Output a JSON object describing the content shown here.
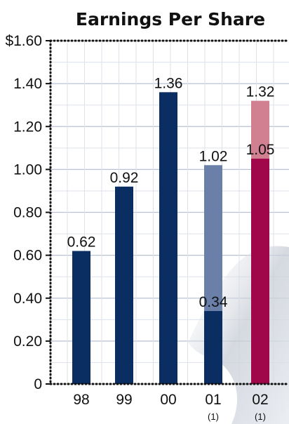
{
  "chart_data": {
    "type": "bar",
    "title": "Earnings Per Share",
    "categories": [
      "98",
      "99",
      "00",
      "01",
      "02"
    ],
    "category_notes": [
      "",
      "",
      "",
      "(1)",
      "(1)"
    ],
    "y_tick_labels": [
      "0",
      "0.20",
      "0.40",
      "0.60",
      "0.80",
      "1.00",
      "1.20",
      "1.40",
      "$1.60"
    ],
    "ylim": [
      0,
      1.6
    ],
    "grid": true,
    "bars": [
      {
        "category": "98",
        "total": 0.62,
        "total_label": "0.62",
        "base": null,
        "base_label": "",
        "total_color": "#0a2d62",
        "base_color": "#0a2d62"
      },
      {
        "category": "99",
        "total": 0.92,
        "total_label": "0.92",
        "base": null,
        "base_label": "",
        "total_color": "#0a2d62",
        "base_color": "#0a2d62"
      },
      {
        "category": "00",
        "total": 1.36,
        "total_label": "1.36",
        "base": null,
        "base_label": "",
        "total_color": "#0a2d62",
        "base_color": "#0a2d62"
      },
      {
        "category": "01",
        "total": 1.02,
        "total_label": "1.02",
        "base": 0.34,
        "base_label": "0.34",
        "total_color": "#6a80a8",
        "base_color": "#0a2d62"
      },
      {
        "category": "02",
        "total": 1.32,
        "total_label": "1.32",
        "base": 1.05,
        "base_label": "1.05",
        "total_color": "#d08090",
        "base_color": "#a0064a"
      }
    ],
    "colors": {
      "axis": "#111111",
      "grid": "#b9c2d3",
      "grid_minor": "#dde2ec"
    }
  }
}
